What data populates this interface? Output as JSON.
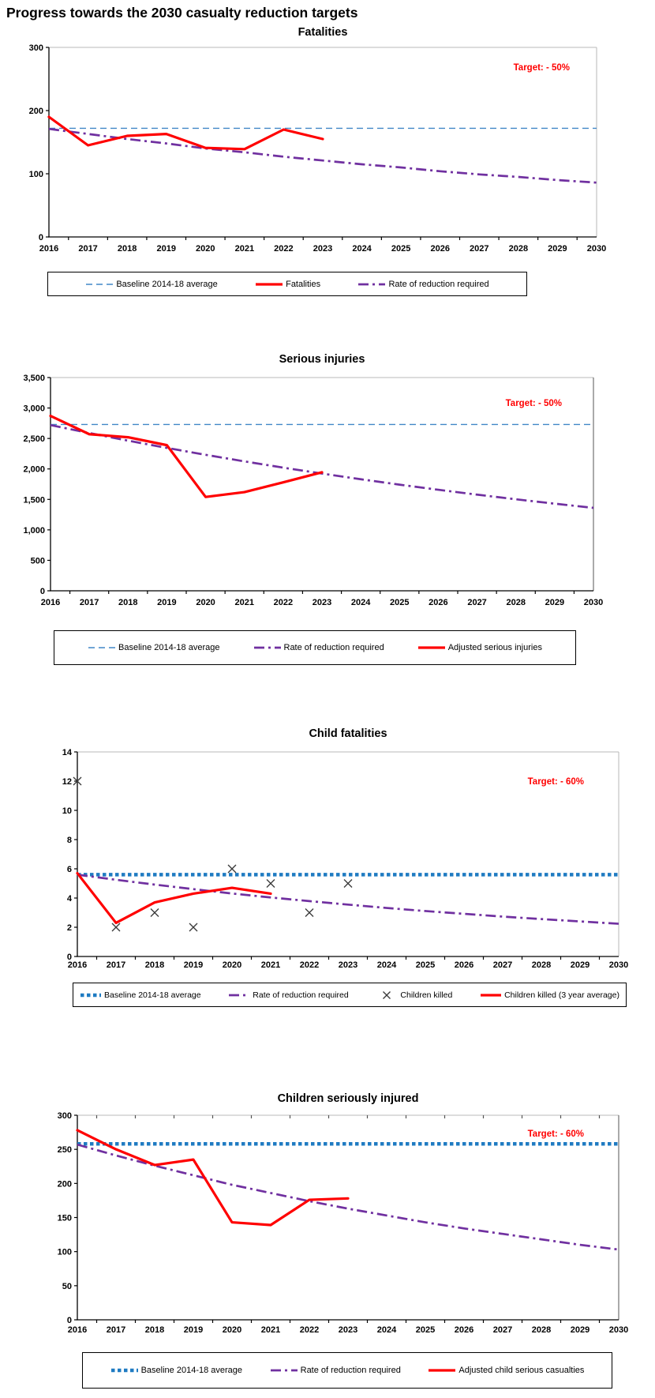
{
  "page": {
    "title": "Progress towards the 2030 casualty reduction targets"
  },
  "colors": {
    "red_series": "#FF0000",
    "purple_series": "#7030A0",
    "baseline_thin_blue": "#4187C7",
    "baseline_thick_blue": "#1F7BC2",
    "target_text": "#FF0000",
    "x_marker": "#3A3A3A"
  },
  "chart_data": [
    {
      "type": "line",
      "title": "Fatalities",
      "target_label": "Target: - 50%",
      "x_years": [
        2016,
        2017,
        2018,
        2019,
        2020,
        2021,
        2022,
        2023,
        2024,
        2025,
        2026,
        2027,
        2028,
        2029,
        2030
      ],
      "x_tick_labels": [
        "2016",
        "2017",
        "2018",
        "2019",
        "2020",
        "2021",
        "2022",
        "2023",
        "2024",
        "2025",
        "2026",
        "2027",
        "2028",
        "2029",
        "2030"
      ],
      "ylim": [
        0,
        300
      ],
      "y_ticks": [
        {
          "value": 0,
          "label": "0"
        },
        {
          "value": 100,
          "label": "100"
        },
        {
          "value": 200,
          "label": "200"
        },
        {
          "value": 300,
          "label": "300"
        }
      ],
      "series": [
        {
          "name": "Baseline 2014-18 average",
          "style": "thin-dash",
          "color": "#4187C7",
          "years": [
            2016,
            2030
          ],
          "values": [
            172,
            172
          ]
        },
        {
          "name": "Rate of reduction required",
          "style": "dashdot",
          "color": "#7030A0",
          "years": [
            2016,
            2017,
            2018,
            2019,
            2020,
            2021,
            2022,
            2023,
            2024,
            2025,
            2026,
            2027,
            2028,
            2029,
            2030
          ],
          "values": [
            171,
            163,
            155,
            148,
            140,
            134,
            127,
            121,
            115,
            110,
            104,
            99,
            95,
            90,
            86
          ]
        },
        {
          "name": "Fatalities",
          "style": "solid",
          "color": "#FF0000",
          "years": [
            2016,
            2017,
            2018,
            2019,
            2020,
            2021,
            2022,
            2023
          ],
          "values": [
            190,
            145,
            160,
            163,
            141,
            139,
            170,
            155
          ]
        }
      ],
      "legend": [
        {
          "label": "Baseline 2014-18 average",
          "style": "thin-dash",
          "color": "#4187C7"
        },
        {
          "label": "Fatalities",
          "style": "solid",
          "color": "#FF0000"
        },
        {
          "label": "Rate of reduction required",
          "style": "dashdot",
          "color": "#7030A0"
        }
      ]
    },
    {
      "type": "line",
      "title": "Serious injuries",
      "target_label": "Target: - 50%",
      "x_years": [
        2016,
        2017,
        2018,
        2019,
        2020,
        2021,
        2022,
        2023,
        2024,
        2025,
        2026,
        2027,
        2028,
        2029,
        2030
      ],
      "x_tick_labels": [
        "2016",
        "2017",
        "2018",
        "2019",
        "2020",
        "2021",
        "2022",
        "2023",
        "2024",
        "2025",
        "2026",
        "2027",
        "2028",
        "2029",
        "2030"
      ],
      "ylim": [
        0,
        3500
      ],
      "y_ticks": [
        {
          "value": 0,
          "label": "0"
        },
        {
          "value": 500,
          "label": "500"
        },
        {
          "value": 1000,
          "label": "1,000"
        },
        {
          "value": 1500,
          "label": "1,500"
        },
        {
          "value": 2000,
          "label": "2,000"
        },
        {
          "value": 2500,
          "label": "2,500"
        },
        {
          "value": 3000,
          "label": "3,000"
        },
        {
          "value": 3500,
          "label": "3,500"
        }
      ],
      "series": [
        {
          "name": "Baseline 2014-18 average",
          "style": "thin-dash",
          "color": "#4187C7",
          "years": [
            2016,
            2030
          ],
          "values": [
            2730,
            2730
          ]
        },
        {
          "name": "Rate of reduction required",
          "style": "dashdot",
          "color": "#7030A0",
          "years": [
            2016,
            2017,
            2018,
            2019,
            2020,
            2021,
            2022,
            2023,
            2024,
            2025,
            2026,
            2027,
            2028,
            2029,
            2030
          ],
          "values": [
            2720,
            2589,
            2464,
            2345,
            2232,
            2124,
            2021,
            1924,
            1831,
            1742,
            1658,
            1578,
            1502,
            1430,
            1361
          ]
        },
        {
          "name": "Adjusted serious injuries",
          "style": "solid",
          "color": "#FF0000",
          "years": [
            2016,
            2017,
            2018,
            2019,
            2020,
            2021,
            2022,
            2023
          ],
          "values": [
            2870,
            2570,
            2520,
            2390,
            1540,
            1620,
            1780,
            1945
          ]
        }
      ],
      "legend": [
        {
          "label": "Baseline 2014-18 average",
          "style": "thin-dash",
          "color": "#4187C7"
        },
        {
          "label": "Rate of reduction required",
          "style": "dashdot",
          "color": "#7030A0"
        },
        {
          "label": "Adjusted serious injuries",
          "style": "solid",
          "color": "#FF0000"
        }
      ]
    },
    {
      "type": "line",
      "title": "Child fatalities",
      "target_label": "Target: - 60%",
      "x_years": [
        2016,
        2017,
        2018,
        2019,
        2020,
        2021,
        2022,
        2023,
        2024,
        2025,
        2026,
        2027,
        2028,
        2029,
        2030
      ],
      "x_tick_labels": [
        "2016",
        "2017",
        "2018",
        "2019",
        "2020",
        "2021",
        "2022",
        "2023",
        "2024",
        "2025",
        "2026",
        "2027",
        "2028",
        "2029",
        "2030"
      ],
      "ylim": [
        0,
        14
      ],
      "y_ticks": [
        {
          "value": 0,
          "label": "0"
        },
        {
          "value": 2,
          "label": "2"
        },
        {
          "value": 4,
          "label": "4"
        },
        {
          "value": 6,
          "label": "6"
        },
        {
          "value": 8,
          "label": "8"
        },
        {
          "value": 10,
          "label": "10"
        },
        {
          "value": 12,
          "label": "12"
        },
        {
          "value": 14,
          "label": "14"
        }
      ],
      "series": [
        {
          "name": "Baseline 2014-18 average",
          "style": "thick-dot",
          "color": "#1F7BC2",
          "years": [
            2016,
            2030
          ],
          "values": [
            5.6,
            5.6
          ]
        },
        {
          "name": "Rate of reduction required",
          "style": "dashdot",
          "color": "#7030A0",
          "years": [
            2016,
            2017,
            2018,
            2019,
            2020,
            2021,
            2022,
            2023,
            2024,
            2025,
            2026,
            2027,
            2028,
            2029,
            2030
          ],
          "values": [
            5.6,
            5.25,
            4.92,
            4.61,
            4.31,
            4.04,
            3.79,
            3.55,
            3.32,
            3.11,
            2.92,
            2.73,
            2.56,
            2.4,
            2.24
          ]
        },
        {
          "name": "Children killed (3 year average)",
          "style": "solid",
          "color": "#FF0000",
          "years": [
            2016,
            2017,
            2018,
            2019,
            2020,
            2021
          ],
          "values": [
            5.7,
            2.3,
            3.7,
            4.3,
            4.7,
            4.3
          ]
        },
        {
          "name": "Children killed",
          "style": "xmark",
          "color": "#3A3A3A",
          "years": [
            2016,
            2017,
            2018,
            2019,
            2020,
            2021,
            2022,
            2023
          ],
          "values": [
            12,
            2,
            3,
            2,
            6,
            5,
            3,
            5
          ]
        }
      ],
      "legend": [
        {
          "label": "Baseline 2014-18 average",
          "style": "thick-dot",
          "color": "#1F7BC2"
        },
        {
          "label": "Rate of reduction required",
          "style": "dashdot",
          "color": "#7030A0"
        },
        {
          "label": "Children killed",
          "style": "xmark",
          "color": "#3A3A3A"
        },
        {
          "label": "Children killed (3 year average)",
          "style": "solid",
          "color": "#FF0000"
        }
      ]
    },
    {
      "type": "line",
      "title": "Children seriously injured",
      "target_label": "Target: - 60%",
      "x_years": [
        2016,
        2017,
        2018,
        2019,
        2020,
        2021,
        2022,
        2023,
        2024,
        2025,
        2026,
        2027,
        2028,
        2029,
        2030
      ],
      "x_tick_labels": [
        "2016",
        "2017",
        "2018",
        "2019",
        "2020",
        "2021",
        "2022",
        "2023",
        "2024",
        "2025",
        "2026",
        "2027",
        "2028",
        "2029",
        "2030"
      ],
      "ylim": [
        0,
        300
      ],
      "y_ticks": [
        {
          "value": 0,
          "label": "0"
        },
        {
          "value": 50,
          "label": "50"
        },
        {
          "value": 100,
          "label": "100"
        },
        {
          "value": 150,
          "label": "150"
        },
        {
          "value": 200,
          "label": "200"
        },
        {
          "value": 250,
          "label": "250"
        },
        {
          "value": 300,
          "label": "300"
        }
      ],
      "series": [
        {
          "name": "Baseline 2014-18 average",
          "style": "thick-dot",
          "color": "#1F7BC2",
          "years": [
            2016,
            2030
          ],
          "values": [
            258,
            258
          ]
        },
        {
          "name": "Rate of reduction required",
          "style": "dashdot",
          "color": "#7030A0",
          "years": [
            2016,
            2017,
            2018,
            2019,
            2020,
            2021,
            2022,
            2023,
            2024,
            2025,
            2026,
            2027,
            2028,
            2029,
            2030
          ],
          "values": [
            257,
            241,
            226,
            212,
            198,
            186,
            174,
            163,
            153,
            143,
            134,
            126,
            118,
            110,
            103
          ]
        },
        {
          "name": "Adjusted child serious casualties",
          "style": "solid",
          "color": "#FF0000",
          "years": [
            2016,
            2017,
            2018,
            2019,
            2020,
            2021,
            2022,
            2023
          ],
          "values": [
            278,
            250,
            227,
            235,
            143,
            139,
            176,
            178
          ]
        }
      ],
      "legend": [
        {
          "label": "Baseline 2014-18 average",
          "style": "thick-dot",
          "color": "#1F7BC2"
        },
        {
          "label": "Rate of reduction required",
          "style": "dashdot",
          "color": "#7030A0"
        },
        {
          "label": "Adjusted child serious casualties",
          "style": "solid",
          "color": "#FF0000"
        }
      ]
    }
  ]
}
